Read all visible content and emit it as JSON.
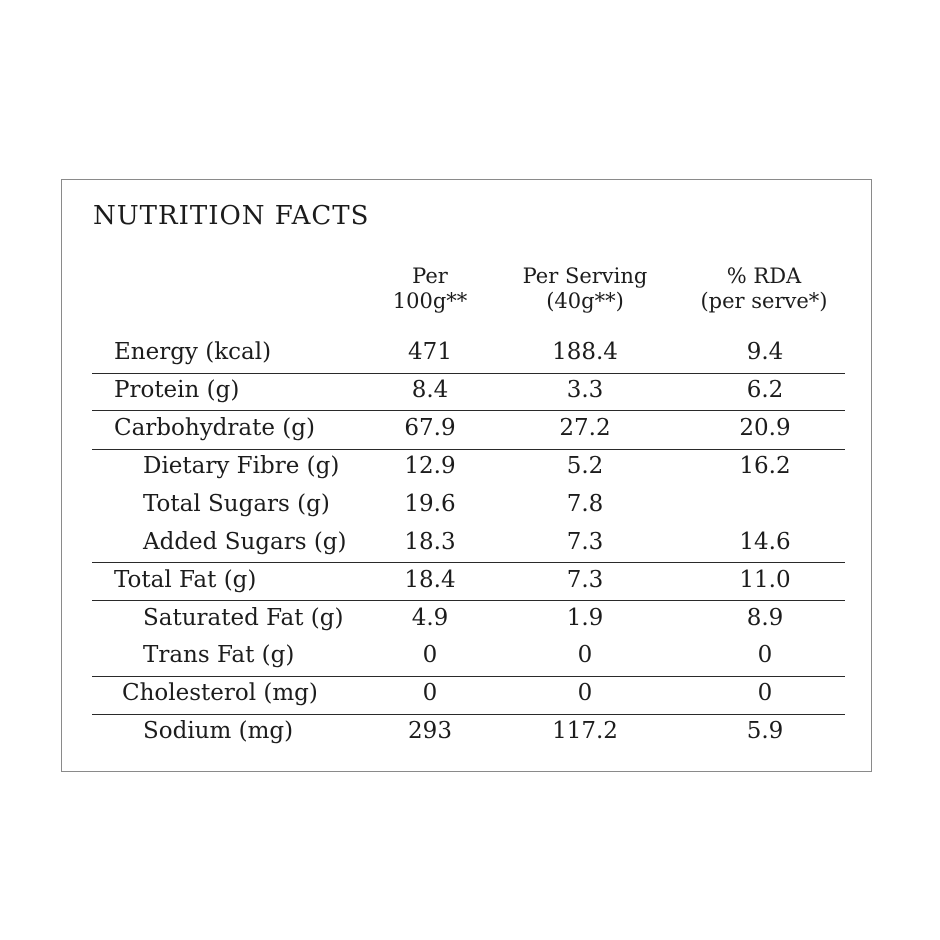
{
  "title": "NUTRITION FACTS",
  "columns": {
    "per100": [
      "Per",
      "100g**"
    ],
    "per_serving": [
      "Per Serving",
      "(40g**)"
    ],
    "rda": [
      "% RDA",
      "(per serve*)"
    ]
  },
  "rows": [
    {
      "label": "Energy (kcal)",
      "per100": "471",
      "per_serving": "188.4",
      "rda": "9.4"
    },
    {
      "label": "Protein (g)",
      "per100": "8.4",
      "per_serving": "3.3",
      "rda": "6.2"
    },
    {
      "label": "Carbohydrate (g)",
      "per100": "67.9",
      "per_serving": "27.2",
      "rda": "20.9"
    },
    {
      "label": "Dietary Fibre (g)",
      "per100": "12.9",
      "per_serving": "5.2",
      "rda": "16.2"
    },
    {
      "label": "Total Sugars (g)",
      "per100": "19.6",
      "per_serving": "7.8",
      "rda": ""
    },
    {
      "label": "Added Sugars (g)",
      "per100": "18.3",
      "per_serving": "7.3",
      "rda": "14.6"
    },
    {
      "label": "Total Fat (g)",
      "per100": "18.4",
      "per_serving": "7.3",
      "rda": "11.0"
    },
    {
      "label": "Saturated Fat (g)",
      "per100": "4.9",
      "per_serving": "1.9",
      "rda": "8.9"
    },
    {
      "label": "Trans Fat (g)",
      "per100": "0",
      "per_serving": "0",
      "rda": "0"
    },
    {
      "label": "Cholesterol (mg)",
      "per100": "0",
      "per_serving": "0",
      "rda": "0"
    },
    {
      "label": "Sodium (mg)",
      "per100": "293",
      "per_serving": "117.2",
      "rda": "5.9"
    }
  ]
}
